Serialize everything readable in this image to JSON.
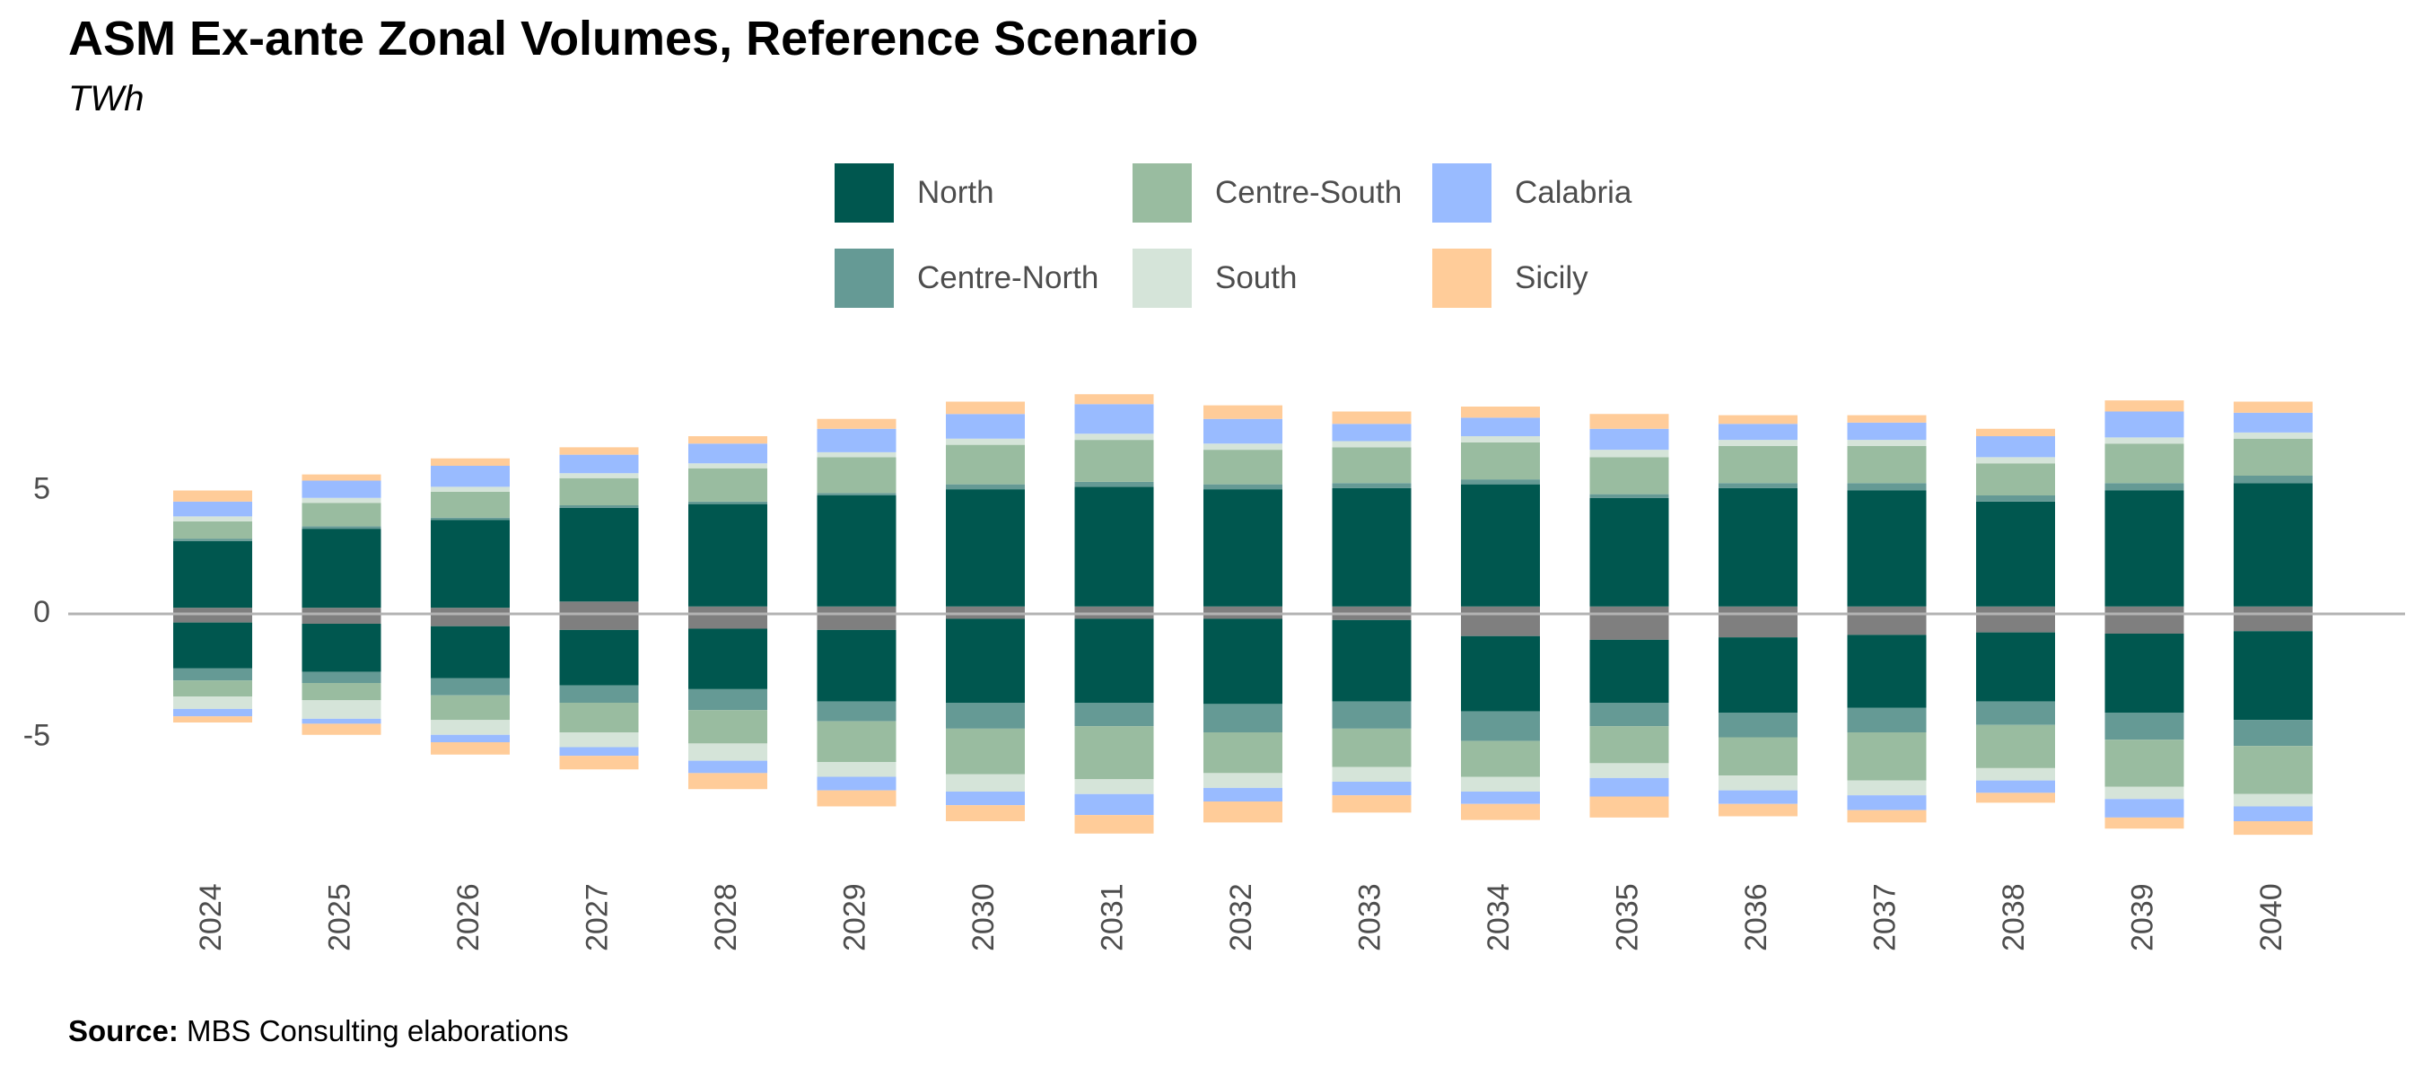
{
  "title": "ASM Ex-ante Zonal Volumes, Reference Scenario",
  "subtitle": "TWh",
  "source_label": "Source:",
  "source_text": "MBS Consulting elaborations",
  "legend": [
    {
      "name": "North",
      "color": "#00574F"
    },
    {
      "name": "Centre-North",
      "color": "#659A95"
    },
    {
      "name": "Centre-South",
      "color": "#99BCA0"
    },
    {
      "name": "South",
      "color": "#D5E4D9"
    },
    {
      "name": "Calabria",
      "color": "#99BBFF"
    },
    {
      "name": "Sicily",
      "color": "#FFCC99"
    }
  ],
  "chart_data": {
    "type": "bar",
    "stacked": true,
    "categories": [
      "2024",
      "2025",
      "2026",
      "2027",
      "2028",
      "2029",
      "2030",
      "2031",
      "2032",
      "2033",
      "2034",
      "2035",
      "2036",
      "2037",
      "2038",
      "2039",
      "2040"
    ],
    "ylim": [
      -9.5,
      9.5
    ],
    "yticks": [
      -5,
      0,
      5
    ],
    "ytick_labels": [
      "-5",
      "0",
      "5"
    ],
    "x_tick_rotation": -90,
    "legend_position": "top",
    "grid": false,
    "zero_line": true,
    "positive": [
      {
        "name": "Gray",
        "color": "#7F7F7F",
        "values": [
          0.25,
          0.25,
          0.25,
          0.5,
          0.3,
          0.3,
          0.3,
          0.3,
          0.3,
          0.3,
          0.3,
          0.3,
          0.3,
          0.3,
          0.3,
          0.3,
          0.3
        ]
      },
      {
        "name": "North",
        "color": "#00574F",
        "values": [
          2.7,
          3.2,
          3.55,
          3.8,
          4.15,
          4.5,
          4.75,
          4.85,
          4.75,
          4.8,
          4.95,
          4.4,
          4.8,
          4.7,
          4.25,
          4.7,
          5.0
        ]
      },
      {
        "name": "Centre-North",
        "color": "#659A95",
        "values": [
          0.1,
          0.1,
          0.1,
          0.1,
          0.1,
          0.1,
          0.2,
          0.2,
          0.2,
          0.2,
          0.2,
          0.15,
          0.2,
          0.3,
          0.25,
          0.3,
          0.3
        ]
      },
      {
        "name": "Centre-South",
        "color": "#99BCA0",
        "values": [
          0.7,
          0.95,
          1.05,
          1.1,
          1.35,
          1.45,
          1.6,
          1.7,
          1.4,
          1.45,
          1.5,
          1.5,
          1.5,
          1.5,
          1.3,
          1.6,
          1.5
        ]
      },
      {
        "name": "South",
        "color": "#D5E4D9",
        "values": [
          0.2,
          0.2,
          0.2,
          0.2,
          0.2,
          0.2,
          0.25,
          0.25,
          0.25,
          0.25,
          0.25,
          0.3,
          0.25,
          0.25,
          0.25,
          0.25,
          0.25
        ]
      },
      {
        "name": "Calabria",
        "color": "#99BBFF",
        "values": [
          0.6,
          0.7,
          0.85,
          0.75,
          0.8,
          0.95,
          1.0,
          1.2,
          1.0,
          0.7,
          0.75,
          0.85,
          0.65,
          0.7,
          0.85,
          1.05,
          0.8
        ]
      },
      {
        "name": "Sicily",
        "color": "#FFCC99",
        "values": [
          0.45,
          0.25,
          0.3,
          0.3,
          0.3,
          0.4,
          0.5,
          0.4,
          0.55,
          0.5,
          0.45,
          0.6,
          0.35,
          0.3,
          0.3,
          0.45,
          0.45
        ]
      }
    ],
    "negative": [
      {
        "name": "Gray",
        "color": "#7F7F7F",
        "values": [
          -0.35,
          -0.4,
          -0.5,
          -0.65,
          -0.6,
          -0.65,
          -0.2,
          -0.2,
          -0.2,
          -0.25,
          -0.9,
          -1.05,
          -0.95,
          -0.85,
          -0.75,
          -0.8,
          -0.7
        ]
      },
      {
        "name": "North",
        "color": "#00574F",
        "values": [
          -1.85,
          -1.95,
          -2.1,
          -2.25,
          -2.45,
          -2.9,
          -3.4,
          -3.4,
          -3.45,
          -3.3,
          -3.05,
          -2.55,
          -3.05,
          -2.95,
          -2.8,
          -3.2,
          -3.6
        ]
      },
      {
        "name": "Centre-North",
        "color": "#659A95",
        "values": [
          -0.5,
          -0.45,
          -0.7,
          -0.7,
          -0.85,
          -0.8,
          -1.05,
          -0.95,
          -1.15,
          -1.1,
          -1.2,
          -0.95,
          -1.0,
          -1.0,
          -0.95,
          -1.1,
          -1.05
        ]
      },
      {
        "name": "Centre-South",
        "color": "#99BCA0",
        "values": [
          -0.65,
          -0.7,
          -1.0,
          -1.2,
          -1.35,
          -1.65,
          -1.85,
          -2.15,
          -1.65,
          -1.55,
          -1.45,
          -1.5,
          -1.55,
          -1.95,
          -1.75,
          -1.9,
          -1.95
        ]
      },
      {
        "name": "South",
        "color": "#D5E4D9",
        "values": [
          -0.5,
          -0.75,
          -0.6,
          -0.6,
          -0.7,
          -0.6,
          -0.7,
          -0.6,
          -0.6,
          -0.6,
          -0.6,
          -0.6,
          -0.6,
          -0.6,
          -0.5,
          -0.5,
          -0.5
        ]
      },
      {
        "name": "Calabria",
        "color": "#99BBFF",
        "values": [
          -0.3,
          -0.2,
          -0.3,
          -0.35,
          -0.5,
          -0.55,
          -0.55,
          -0.85,
          -0.55,
          -0.55,
          -0.5,
          -0.75,
          -0.55,
          -0.6,
          -0.5,
          -0.75,
          -0.6
        ]
      },
      {
        "name": "Sicily",
        "color": "#FFCC99",
        "values": [
          -0.25,
          -0.45,
          -0.5,
          -0.55,
          -0.65,
          -0.65,
          -0.65,
          -0.75,
          -0.85,
          -0.7,
          -0.65,
          -0.85,
          -0.5,
          -0.5,
          -0.4,
          -0.45,
          -0.55
        ]
      }
    ]
  }
}
